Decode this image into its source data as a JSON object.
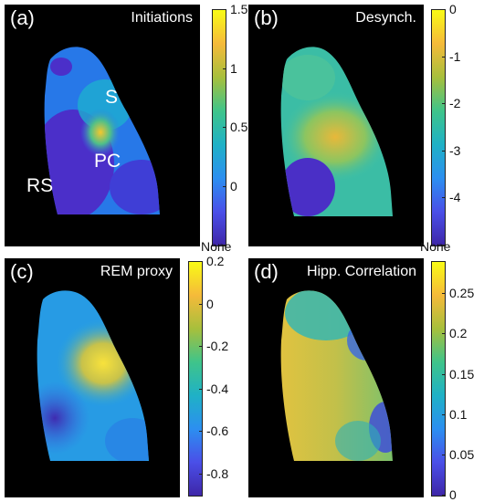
{
  "chart_data": [
    {
      "type": "heatmap",
      "panel_label": "(a)",
      "title": "Initiations",
      "region_labels": [
        "S",
        "PC",
        "RS"
      ],
      "colorbar": {
        "range": [
          -0.5,
          1.5
        ],
        "ticks": [
          "1.5",
          "1",
          "0.5",
          "0",
          "None"
        ],
        "tick_values": [
          1.5,
          1.0,
          0.5,
          0.0,
          -0.5
        ],
        "colormap": "parula"
      }
    },
    {
      "type": "heatmap",
      "panel_label": "(b)",
      "title": "Desynch.",
      "colorbar": {
        "range": [
          -5,
          0
        ],
        "ticks": [
          "0",
          "-1",
          "-2",
          "-3",
          "-4",
          "None"
        ],
        "tick_values": [
          0,
          -1,
          -2,
          -3,
          -4,
          -5
        ],
        "colormap": "parula"
      }
    },
    {
      "type": "heatmap",
      "panel_label": "(c)",
      "title": "REM proxy",
      "colorbar": {
        "range": [
          -0.9,
          0.2
        ],
        "ticks": [
          "0.2",
          "0",
          "-0.2",
          "-0.4",
          "-0.6",
          "-0.8"
        ],
        "tick_values": [
          0.2,
          0.0,
          -0.2,
          -0.4,
          -0.6,
          -0.8
        ],
        "colormap": "parula"
      }
    },
    {
      "type": "heatmap",
      "panel_label": "(d)",
      "title": "Hipp. Correlation",
      "colorbar": {
        "range": [
          0,
          0.29
        ],
        "ticks": [
          "0.25",
          "0.2",
          "0.15",
          "0.1",
          "0.05",
          "0"
        ],
        "tick_values": [
          0.25,
          0.2,
          0.15,
          0.1,
          0.05,
          0
        ],
        "colormap": "parula"
      }
    }
  ],
  "colors": {
    "background": "#000000",
    "parula_low": "#3e26a8",
    "parula_mid": "#1fa9c9",
    "parula_high": "#f9fb15"
  }
}
